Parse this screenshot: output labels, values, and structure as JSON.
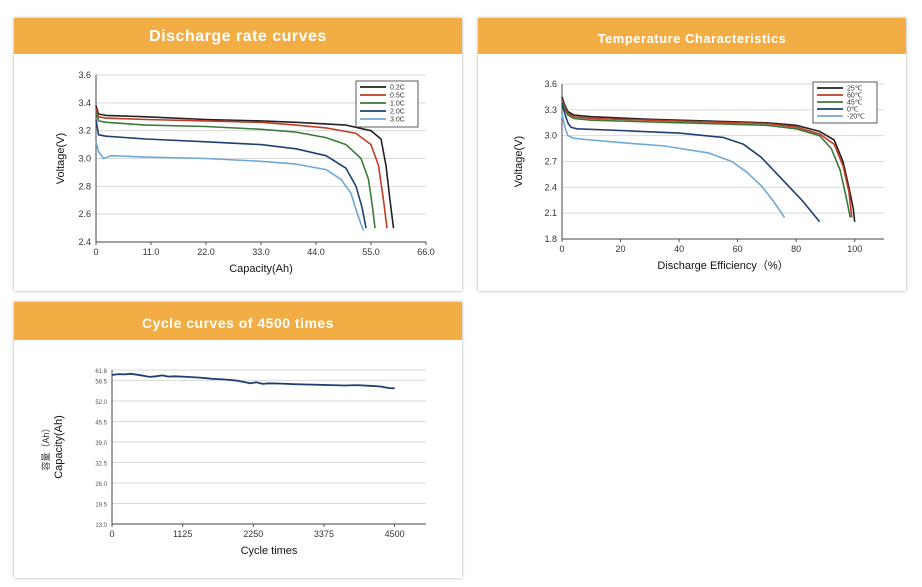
{
  "chart_data": [
    {
      "type": "line",
      "title": "Discharge rate curves",
      "xlabel": "Capacity(Ah)",
      "ylabel": "Voltage(V)",
      "xlim": [
        0,
        66
      ],
      "ylim": [
        2.4,
        3.6
      ],
      "x_ticks": [
        "0",
        "11.0",
        "22.0",
        "33.0",
        "44.0",
        "55.0",
        "66.0"
      ],
      "y_ticks": [
        "2.4",
        "2.6",
        "2.8",
        "3.0",
        "3.2",
        "3.4",
        "3.6"
      ],
      "grid": "horizontal",
      "legend": "top-right",
      "series": [
        {
          "name": "0.2C",
          "color": "#222222",
          "x": [
            0,
            0.5,
            2,
            10,
            22,
            33,
            40,
            45,
            50,
            55,
            57,
            58,
            58.8,
            59.5
          ],
          "y": [
            3.38,
            3.32,
            3.31,
            3.3,
            3.28,
            3.27,
            3.26,
            3.25,
            3.24,
            3.2,
            3.14,
            2.95,
            2.7,
            2.5
          ]
        },
        {
          "name": "0.5C",
          "color": "#c23b22",
          "x": [
            0,
            0.5,
            2,
            10,
            22,
            33,
            40,
            46,
            52,
            55,
            56.5,
            57.5,
            58.2
          ],
          "y": [
            3.36,
            3.3,
            3.29,
            3.28,
            3.27,
            3.26,
            3.24,
            3.22,
            3.18,
            3.1,
            2.95,
            2.7,
            2.5
          ]
        },
        {
          "name": "1.0C",
          "color": "#3a7a3a",
          "x": [
            0,
            0.5,
            2,
            10,
            22,
            33,
            40,
            46,
            50,
            53,
            54.5,
            55.3,
            55.8
          ],
          "y": [
            3.33,
            3.27,
            3.26,
            3.24,
            3.23,
            3.21,
            3.19,
            3.15,
            3.1,
            3.0,
            2.85,
            2.65,
            2.5
          ]
        },
        {
          "name": "2.0C",
          "color": "#1f3f73",
          "x": [
            0,
            0.5,
            2,
            10,
            22,
            33,
            40,
            46,
            50,
            52,
            53.2,
            54
          ],
          "y": [
            3.28,
            3.17,
            3.16,
            3.14,
            3.12,
            3.1,
            3.07,
            3.02,
            2.93,
            2.8,
            2.65,
            2.5
          ]
        },
        {
          "name": "3.0C",
          "color": "#6fa8d8",
          "x": [
            0,
            0.5,
            1.5,
            3,
            10,
            22,
            33,
            40,
            46,
            49,
            51,
            52.3,
            53.5
          ],
          "y": [
            3.12,
            3.05,
            3.0,
            3.02,
            3.01,
            3.0,
            2.98,
            2.96,
            2.92,
            2.85,
            2.75,
            2.6,
            2.48
          ]
        }
      ]
    },
    {
      "type": "line",
      "title": "Temperature Characteristics",
      "xlabel": "Discharge Efficiency（%）",
      "ylabel": "Voltage(V)",
      "xlim": [
        0,
        110
      ],
      "ylim": [
        1.8,
        3.6
      ],
      "x_ticks": [
        "0",
        "20",
        "40",
        "60",
        "80",
        "100"
      ],
      "y_ticks": [
        "1.8",
        "2.1",
        "2.4",
        "2.7",
        "3.0",
        "3.3",
        "3.6"
      ],
      "grid": "horizontal",
      "legend": "top-right",
      "series": [
        {
          "name": "25℃",
          "color": "#222222",
          "x": [
            0,
            1,
            2,
            4,
            10,
            30,
            50,
            70,
            80,
            88,
            93,
            96,
            98,
            99.5,
            100
          ],
          "y": [
            3.45,
            3.35,
            3.28,
            3.24,
            3.22,
            3.19,
            3.17,
            3.15,
            3.12,
            3.05,
            2.95,
            2.7,
            2.4,
            2.15,
            2.0
          ]
        },
        {
          "name": "60℃",
          "color": "#c23b22",
          "x": [
            0,
            1,
            2,
            4,
            10,
            30,
            50,
            70,
            80,
            88,
            93,
            96,
            98,
            99
          ],
          "y": [
            3.42,
            3.33,
            3.26,
            3.22,
            3.2,
            3.18,
            3.16,
            3.14,
            3.1,
            3.02,
            2.9,
            2.65,
            2.35,
            2.05
          ]
        },
        {
          "name": "45℃",
          "color": "#3a7a3a",
          "x": [
            0,
            1,
            2,
            4,
            10,
            30,
            50,
            70,
            80,
            88,
            92,
            95,
            97,
            98.5
          ],
          "y": [
            3.4,
            3.3,
            3.24,
            3.2,
            3.18,
            3.16,
            3.14,
            3.12,
            3.08,
            3.0,
            2.85,
            2.6,
            2.3,
            2.05
          ]
        },
        {
          "name": "0℃",
          "color": "#1f3f73",
          "x": [
            0,
            1,
            2,
            3,
            5,
            20,
            40,
            55,
            62,
            68,
            75,
            82,
            88
          ],
          "y": [
            3.38,
            3.25,
            3.15,
            3.1,
            3.08,
            3.06,
            3.03,
            2.98,
            2.9,
            2.75,
            2.5,
            2.25,
            2.0
          ]
        },
        {
          "name": "-20℃",
          "color": "#6fa8d8",
          "x": [
            0,
            1,
            2,
            4,
            10,
            20,
            35,
            50,
            58,
            63,
            68,
            72,
            76
          ],
          "y": [
            3.25,
            3.1,
            3.0,
            2.97,
            2.95,
            2.92,
            2.88,
            2.8,
            2.7,
            2.58,
            2.42,
            2.25,
            2.05
          ]
        }
      ]
    },
    {
      "type": "line",
      "title": "Cycle curves of 4500 times",
      "xlabel": "Cycle times",
      "ylabel": "Capacity(Ah)",
      "ylabel_extra": "容量（Ah）",
      "xlim": [
        0,
        5000
      ],
      "ylim": [
        13.0,
        61.8
      ],
      "x_ticks": [
        "0",
        "1125",
        "2250",
        "3375",
        "4500"
      ],
      "x_tick_values": [
        0,
        1125,
        2250,
        3375,
        4500
      ],
      "y_ticks": [
        "13.0",
        "19.5",
        "26.0",
        "32.5",
        "39.0",
        "45.5",
        "52.0",
        "58.5",
        "61.8"
      ],
      "y_tick_values": [
        13.0,
        19.5,
        26.0,
        32.5,
        39.0,
        45.5,
        52.0,
        58.5,
        61.8
      ],
      "grid": "horizontal",
      "series": [
        {
          "name": "",
          "color": "#1f3f73",
          "x": [
            0,
            100,
            200,
            300,
            400,
            500,
            600,
            700,
            800,
            900,
            1000,
            1200,
            1400,
            1600,
            1800,
            2000,
            2100,
            2200,
            2300,
            2400,
            2500,
            2700,
            2900,
            3100,
            3300,
            3500,
            3700,
            3900,
            4100,
            4200,
            4300,
            4400,
            4500
          ],
          "y": [
            60.2,
            60.5,
            60.4,
            60.6,
            60.3,
            60.0,
            59.6,
            59.8,
            60.1,
            59.7,
            59.8,
            59.6,
            59.4,
            59.0,
            58.8,
            58.4,
            58.0,
            57.6,
            57.9,
            57.4,
            57.6,
            57.5,
            57.3,
            57.2,
            57.1,
            57.0,
            56.9,
            57.0,
            56.8,
            56.7,
            56.5,
            56.1,
            56.0
          ]
        }
      ]
    }
  ]
}
